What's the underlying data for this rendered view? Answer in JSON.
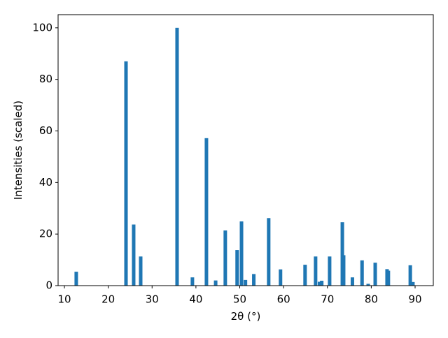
{
  "chart_data": {
    "type": "bar",
    "xlabel": "2θ (°)",
    "ylabel": "Intensities (scaled)",
    "x": [
      12.7,
      24.05,
      25.8,
      27.4,
      35.7,
      39.2,
      42.4,
      44.5,
      46.7,
      49.4,
      50.4,
      51.3,
      53.2,
      56.6,
      59.3,
      64.9,
      67.3,
      68.2,
      68.7,
      70.5,
      73.4,
      73.7,
      75.7,
      77.9,
      79.3,
      80.9,
      83.6,
      83.9,
      88.9,
      89.5
    ],
    "values": [
      5.4,
      87,
      23.7,
      11.3,
      100,
      3.2,
      57.2,
      2,
      21.4,
      13.8,
      24.9,
      2.2,
      4.5,
      26.2,
      6.3,
      8.1,
      11.3,
      1.5,
      1.9,
      11.3,
      24.6,
      11.8,
      3.2,
      9.8,
      0.7,
      8.9,
      6.4,
      5.8,
      7.9,
      1.4
    ],
    "color": "#1f77b4",
    "xlim": [
      8.56,
      94.15
    ],
    "xticks": [
      10,
      20,
      30,
      40,
      50,
      60,
      70,
      80,
      90
    ],
    "ylim": [
      0,
      105.1
    ],
    "yticks": [
      0,
      20,
      40,
      60,
      80,
      100
    ]
  }
}
